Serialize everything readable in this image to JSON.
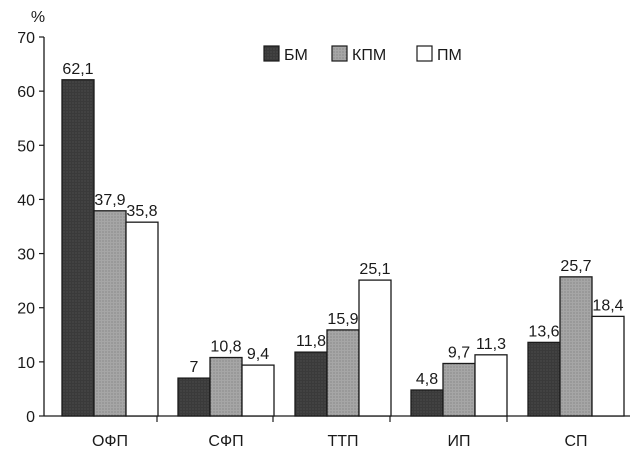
{
  "chart_data": {
    "type": "bar",
    "title": "",
    "ylabel": "%",
    "xlabel": "",
    "ylim": [
      0,
      70
    ],
    "yticks": [
      "0",
      "10",
      "20",
      "30",
      "40",
      "50",
      "60",
      "70"
    ],
    "categories": [
      "ОФП",
      "СФП",
      "ТТП",
      "ИП",
      "СП"
    ],
    "series": [
      {
        "name": "БМ",
        "fill": "#3a3a3a",
        "values": [
          62.1,
          7,
          11.8,
          4.8,
          13.6
        ],
        "labels": [
          "62,1",
          "7",
          "11,8",
          "4,8",
          "13,6"
        ]
      },
      {
        "name": "КПМ",
        "fill": "#a6a6a6",
        "values": [
          37.9,
          10.8,
          15.9,
          9.7,
          25.7
        ],
        "labels": [
          "37,9",
          "10,8",
          "15,9",
          "9,7",
          "25,7"
        ]
      },
      {
        "name": "ПМ",
        "fill": "#ffffff",
        "values": [
          35.8,
          9.4,
          25.1,
          11.3,
          18.4
        ],
        "labels": [
          "35,8",
          "9,4",
          "25,1",
          "11,3",
          "18,4"
        ]
      }
    ],
    "legend": "top-right",
    "grid": false
  }
}
